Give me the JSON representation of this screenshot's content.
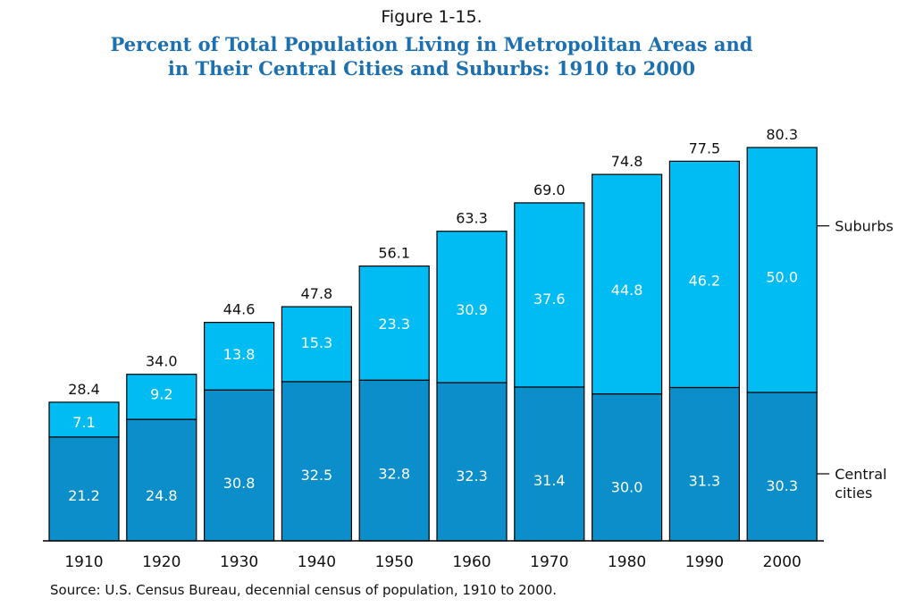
{
  "figure_label": "Figure 1-15.",
  "title_line1": "Percent of Total Population Living in Metropolitan Areas and",
  "title_line2": "in Their Central Cities and Suburbs:  1910 to 2000",
  "source": "Source:  U.S. Census Bureau, decennial census of population, 1910 to 2000.",
  "colors": {
    "suburbs": "#00bcf2",
    "central": "#0b8ec9",
    "title": "#1d70b0"
  },
  "chart_data": {
    "type": "bar",
    "stacked": true,
    "title": "Percent of Total Population Living in Metropolitan Areas and in Their Central Cities and Suburbs:  1910 to 2000",
    "categories": [
      "1910",
      "1920",
      "1930",
      "1940",
      "1950",
      "1960",
      "1970",
      "1980",
      "1990",
      "2000"
    ],
    "series": [
      {
        "name": "Central cities",
        "values": [
          21.2,
          24.8,
          30.8,
          32.5,
          32.8,
          32.3,
          31.4,
          30.0,
          31.3,
          30.3
        ],
        "labels": [
          "21.2",
          "24.8",
          "30.8",
          "32.5",
          "32.8",
          "32.3",
          "31.4",
          "30.0",
          "31.3",
          "30.3"
        ]
      },
      {
        "name": "Suburbs",
        "values": [
          7.1,
          9.2,
          13.8,
          15.3,
          23.3,
          30.9,
          37.6,
          44.8,
          46.2,
          50.0
        ],
        "labels": [
          "7.1",
          "9.2",
          "13.8",
          "15.3",
          "23.3",
          "30.9",
          "37.6",
          "44.8",
          "46.2",
          "50.0"
        ]
      }
    ],
    "totals": [
      "28.4",
      "34.0",
      "44.6",
      "47.8",
      "56.1",
      "63.3",
      "69.0",
      "74.8",
      "77.5",
      "80.3"
    ],
    "legend": {
      "suburbs": "Suburbs",
      "central_line1": "Central",
      "central_line2": "cities",
      "placement": "right"
    },
    "ylim": [
      0,
      80.3
    ],
    "grid": false
  }
}
